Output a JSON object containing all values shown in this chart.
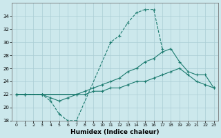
{
  "xlabel": "Humidex (Indice chaleur)",
  "x_all": [
    0,
    1,
    2,
    3,
    4,
    5,
    6,
    7,
    8,
    9,
    10,
    11,
    12,
    13,
    14,
    15,
    16,
    17,
    18,
    19,
    20,
    21,
    22,
    23
  ],
  "line1_x": [
    0,
    1,
    3,
    4,
    5,
    6,
    7,
    11,
    12,
    13,
    14,
    15,
    16,
    17
  ],
  "line1_y": [
    22,
    22,
    22,
    21,
    19,
    18,
    18,
    30,
    31,
    33,
    34.5,
    35,
    35,
    29
  ],
  "line2_x": [
    0,
    1,
    3,
    4,
    5,
    6,
    7
  ],
  "line2_y": [
    22,
    22,
    22,
    21.5,
    21,
    21.5,
    22
  ],
  "line3_x": [
    0,
    1,
    3,
    7,
    8,
    9,
    10,
    11,
    12,
    13,
    14,
    15,
    16,
    17,
    18,
    19,
    20,
    21,
    22,
    23
  ],
  "line3_y": [
    22,
    22,
    22,
    22,
    22.5,
    23,
    23.5,
    24,
    24.5,
    25.5,
    26,
    27,
    27.5,
    28.5,
    29,
    27,
    25.5,
    25,
    25,
    23
  ],
  "line4_x": [
    0,
    1,
    3,
    7,
    8,
    9,
    10,
    11,
    12,
    13,
    14,
    15,
    16,
    17,
    18,
    19,
    20,
    21,
    22,
    23
  ],
  "line4_y": [
    22,
    22,
    22,
    22,
    22,
    22.5,
    22.5,
    23,
    23,
    23.5,
    24,
    24,
    24.5,
    25,
    25.5,
    26,
    25,
    24,
    23.5,
    23
  ],
  "ylim": [
    18,
    36
  ],
  "xlim": [
    -0.5,
    23.5
  ],
  "yticks": [
    18,
    20,
    22,
    24,
    26,
    28,
    30,
    32,
    34
  ],
  "line_color": "#1a7a6e",
  "bg_color": "#cce8ec",
  "grid_color": "#aacdd4"
}
